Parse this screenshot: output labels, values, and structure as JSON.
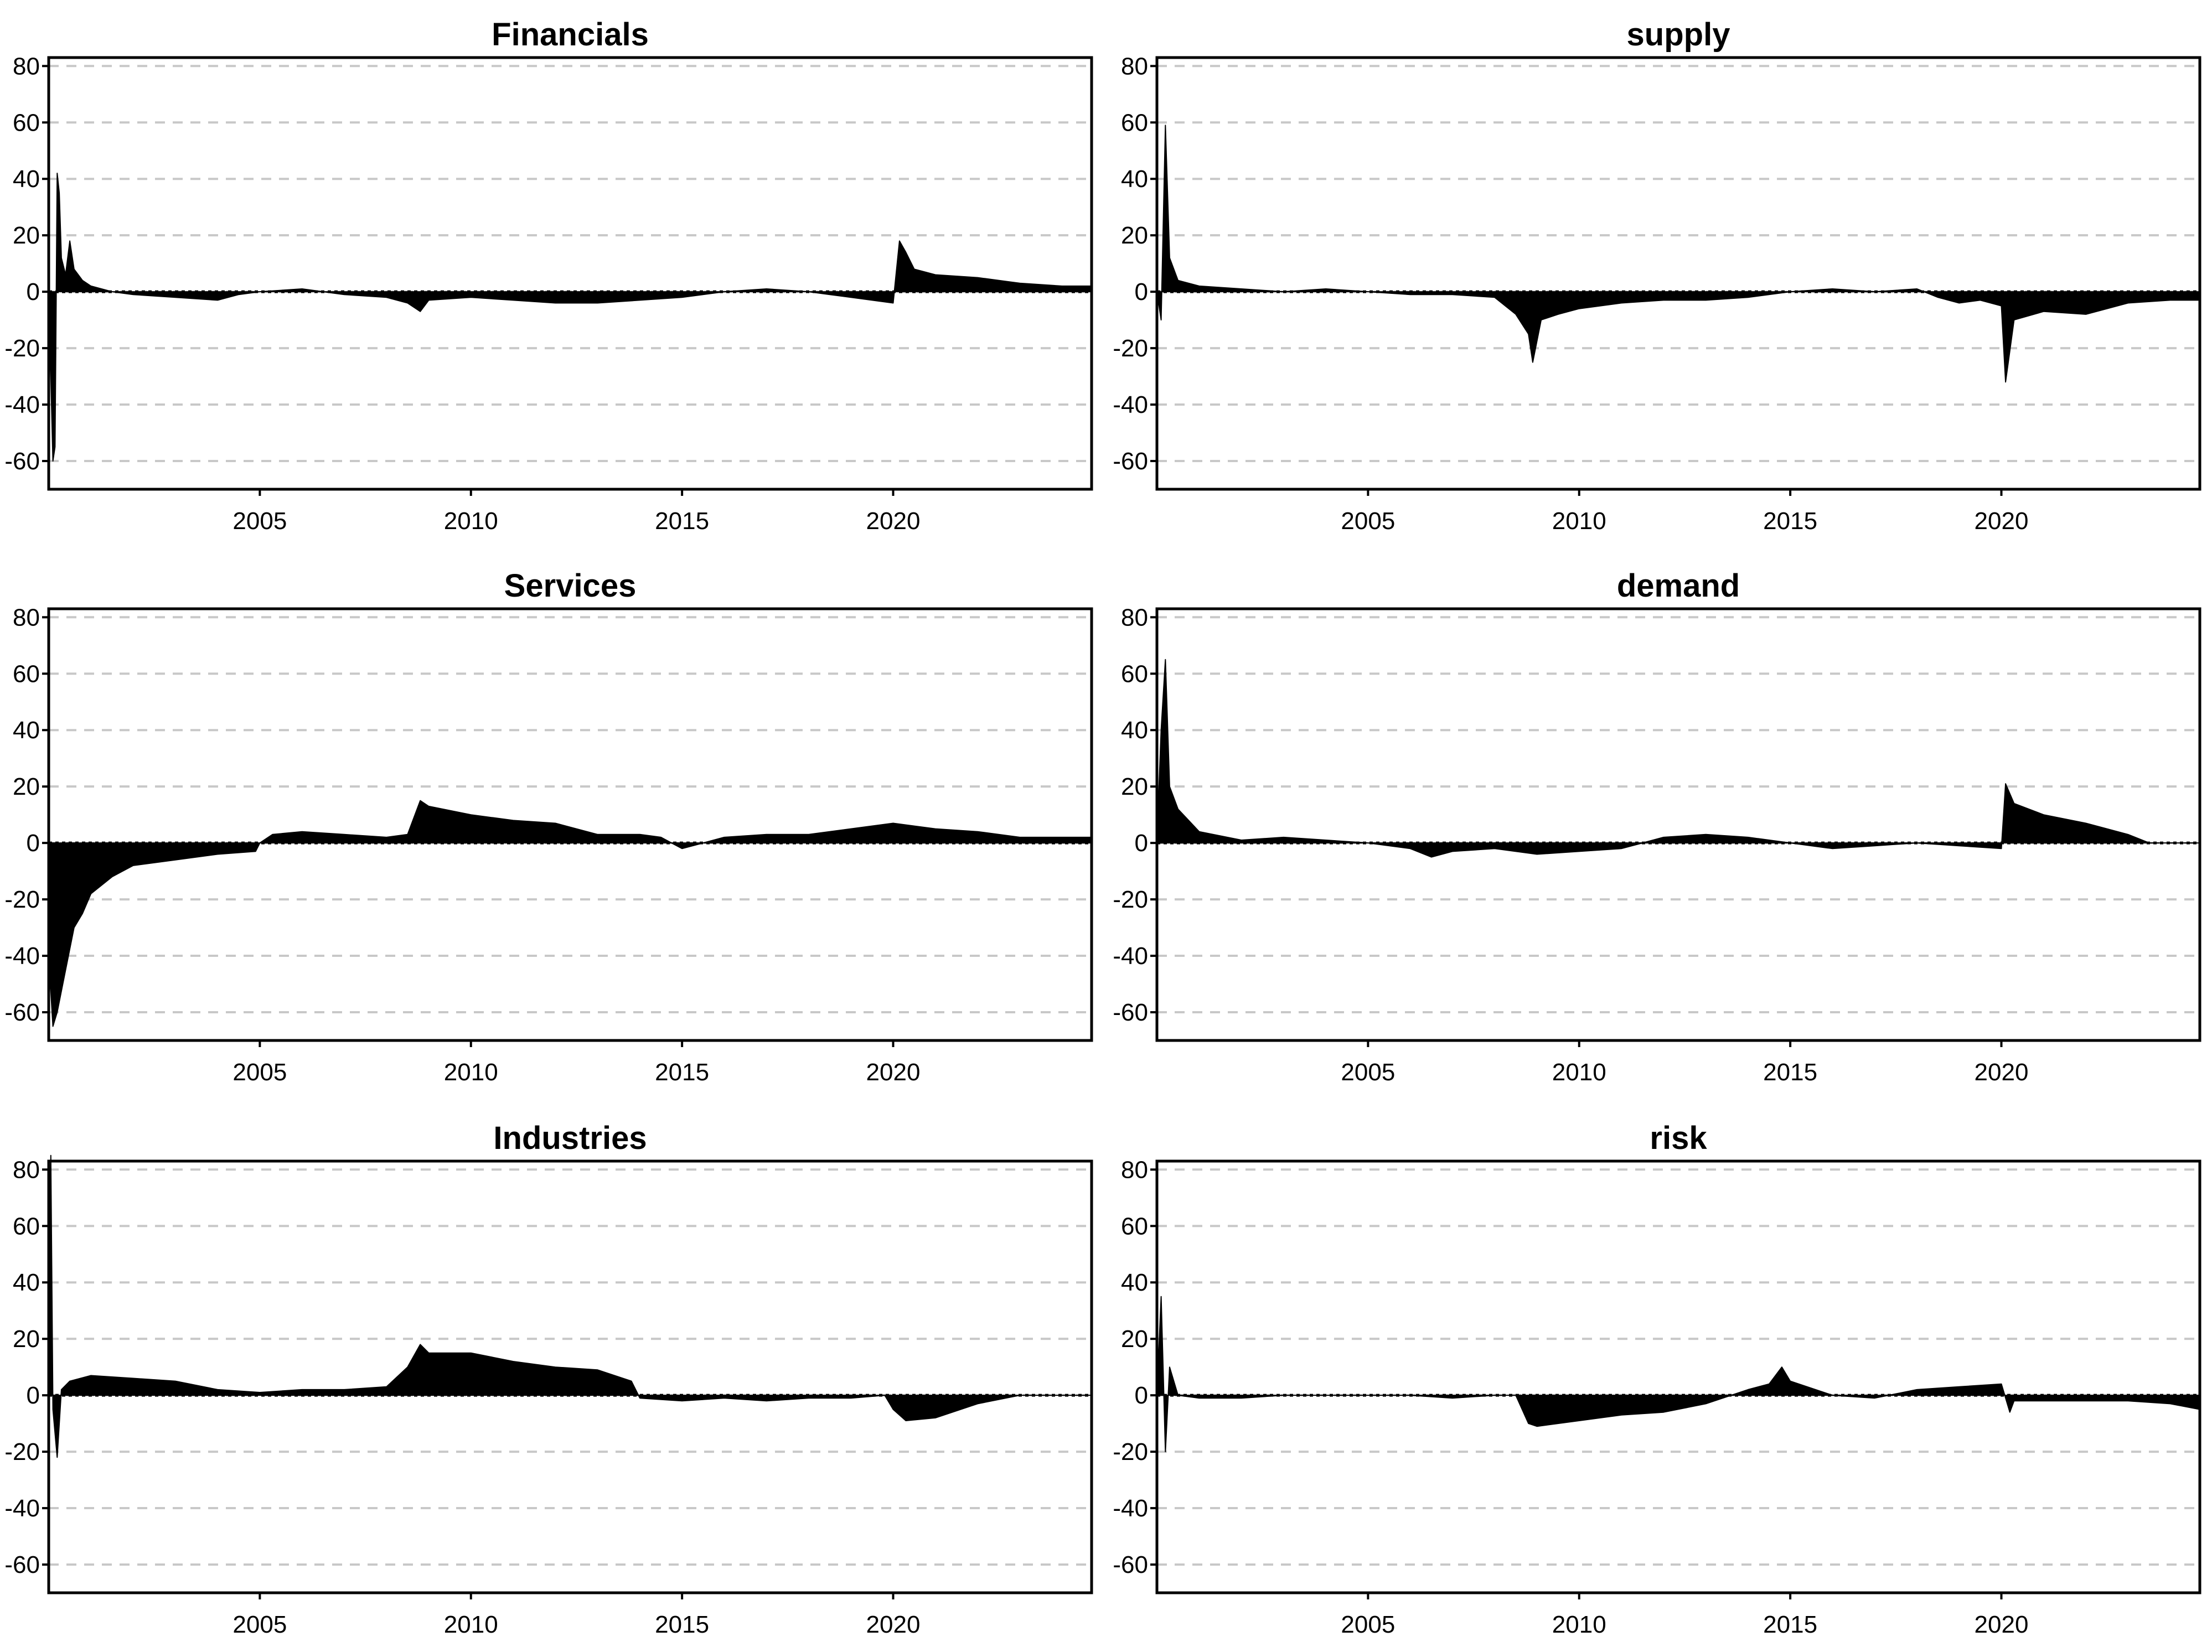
{
  "chart_data": [
    {
      "type": "area",
      "title": "Financials",
      "xlim": [
        2000,
        2024.7
      ],
      "ylim": [
        -70,
        83
      ],
      "yticks": [
        80,
        60,
        40,
        20,
        0,
        -20,
        -40,
        -60
      ],
      "xticks": [
        2005,
        2010,
        2015,
        2020
      ],
      "grid": true,
      "series": [
        {
          "values": [
            [
              2000.0,
              0
            ],
            [
              2000.1,
              -60
            ],
            [
              2000.15,
              -55
            ],
            [
              2000.2,
              42
            ],
            [
              2000.25,
              35
            ],
            [
              2000.3,
              12
            ],
            [
              2000.4,
              6
            ],
            [
              2000.5,
              18
            ],
            [
              2000.6,
              8
            ],
            [
              2000.8,
              4
            ],
            [
              2001.0,
              2
            ],
            [
              2001.5,
              0
            ],
            [
              2002.0,
              -1
            ],
            [
              2003.0,
              -2
            ],
            [
              2004.0,
              -3
            ],
            [
              2004.5,
              -1
            ],
            [
              2005.0,
              0
            ],
            [
              2006.0,
              1
            ],
            [
              2007.0,
              -1
            ],
            [
              2008.0,
              -2
            ],
            [
              2008.5,
              -4
            ],
            [
              2008.8,
              -7
            ],
            [
              2009.0,
              -3
            ],
            [
              2010.0,
              -2
            ],
            [
              2011.0,
              -3
            ],
            [
              2012.0,
              -4
            ],
            [
              2013.0,
              -4
            ],
            [
              2014.0,
              -3
            ],
            [
              2015.0,
              -2
            ],
            [
              2016.0,
              0
            ],
            [
              2017.0,
              1
            ],
            [
              2018.0,
              0
            ],
            [
              2018.5,
              -1
            ],
            [
              2019.0,
              -2
            ],
            [
              2019.5,
              -3
            ],
            [
              2020.0,
              -4
            ],
            [
              2020.15,
              18
            ],
            [
              2020.3,
              14
            ],
            [
              2020.5,
              8
            ],
            [
              2021.0,
              6
            ],
            [
              2022.0,
              5
            ],
            [
              2023.0,
              3
            ],
            [
              2024.0,
              2
            ],
            [
              2024.7,
              2
            ]
          ]
        }
      ]
    },
    {
      "type": "area",
      "title": "supply",
      "xlim": [
        2000,
        2024.7
      ],
      "ylim": [
        -70,
        83
      ],
      "yticks": [
        80,
        60,
        40,
        20,
        0,
        -20,
        -40,
        -60
      ],
      "xticks": [
        2005,
        2010,
        2015,
        2020
      ],
      "grid": true,
      "series": [
        {
          "values": [
            [
              2000.0,
              0
            ],
            [
              2000.1,
              -10
            ],
            [
              2000.2,
              59
            ],
            [
              2000.3,
              12
            ],
            [
              2000.5,
              4
            ],
            [
              2001.0,
              2
            ],
            [
              2002.0,
              1
            ],
            [
              2003.0,
              0
            ],
            [
              2004.0,
              1
            ],
            [
              2005.0,
              0
            ],
            [
              2006.0,
              -1
            ],
            [
              2007.0,
              -1
            ],
            [
              2008.0,
              -2
            ],
            [
              2008.5,
              -8
            ],
            [
              2008.8,
              -15
            ],
            [
              2008.9,
              -25
            ],
            [
              2009.1,
              -10
            ],
            [
              2009.5,
              -8
            ],
            [
              2010.0,
              -6
            ],
            [
              2011.0,
              -4
            ],
            [
              2012.0,
              -3
            ],
            [
              2013.0,
              -3
            ],
            [
              2014.0,
              -2
            ],
            [
              2015.0,
              0
            ],
            [
              2016.0,
              1
            ],
            [
              2017.0,
              0
            ],
            [
              2018.0,
              1
            ],
            [
              2018.5,
              -2
            ],
            [
              2019.0,
              -4
            ],
            [
              2019.5,
              -3
            ],
            [
              2020.0,
              -5
            ],
            [
              2020.1,
              -32
            ],
            [
              2020.3,
              -10
            ],
            [
              2021.0,
              -7
            ],
            [
              2022.0,
              -8
            ],
            [
              2023.0,
              -4
            ],
            [
              2024.0,
              -3
            ],
            [
              2024.7,
              -3
            ]
          ]
        }
      ]
    },
    {
      "type": "area",
      "title": "Services",
      "xlim": [
        2000,
        2024.7
      ],
      "ylim": [
        -70,
        83
      ],
      "yticks": [
        80,
        60,
        40,
        20,
        0,
        -20,
        -40,
        -60
      ],
      "xticks": [
        2005,
        2010,
        2015,
        2020
      ],
      "grid": true,
      "series": [
        {
          "values": [
            [
              2000.0,
              -40
            ],
            [
              2000.1,
              -65
            ],
            [
              2000.2,
              -60
            ],
            [
              2000.4,
              -45
            ],
            [
              2000.6,
              -30
            ],
            [
              2000.8,
              -25
            ],
            [
              2001.0,
              -18
            ],
            [
              2001.5,
              -12
            ],
            [
              2002.0,
              -8
            ],
            [
              2003.0,
              -6
            ],
            [
              2004.0,
              -4
            ],
            [
              2004.9,
              -3
            ],
            [
              2005.0,
              0
            ],
            [
              2005.3,
              3
            ],
            [
              2006.0,
              4
            ],
            [
              2007.0,
              3
            ],
            [
              2008.0,
              2
            ],
            [
              2008.5,
              3
            ],
            [
              2008.8,
              15
            ],
            [
              2009.0,
              13
            ],
            [
              2010.0,
              10
            ],
            [
              2011.0,
              8
            ],
            [
              2012.0,
              7
            ],
            [
              2013.0,
              3
            ],
            [
              2014.0,
              3
            ],
            [
              2014.5,
              2
            ],
            [
              2015.0,
              -2
            ],
            [
              2015.5,
              0
            ],
            [
              2016.0,
              2
            ],
            [
              2017.0,
              3
            ],
            [
              2018.0,
              3
            ],
            [
              2019.0,
              5
            ],
            [
              2020.0,
              7
            ],
            [
              2021.0,
              5
            ],
            [
              2022.0,
              4
            ],
            [
              2023.0,
              2
            ],
            [
              2024.0,
              2
            ],
            [
              2024.7,
              2
            ]
          ]
        }
      ]
    },
    {
      "type": "area",
      "title": "demand",
      "xlim": [
        2000,
        2024.7
      ],
      "ylim": [
        -70,
        83
      ],
      "yticks": [
        80,
        60,
        40,
        20,
        0,
        -20,
        -40,
        -60
      ],
      "xticks": [
        2005,
        2010,
        2015,
        2020
      ],
      "grid": true,
      "series": [
        {
          "values": [
            [
              2000.0,
              0
            ],
            [
              2000.1,
              40
            ],
            [
              2000.2,
              65
            ],
            [
              2000.3,
              20
            ],
            [
              2000.5,
              12
            ],
            [
              2001.0,
              4
            ],
            [
              2002.0,
              1
            ],
            [
              2003.0,
              2
            ],
            [
              2004.0,
              1
            ],
            [
              2005.0,
              0
            ],
            [
              2006.0,
              -2
            ],
            [
              2006.5,
              -5
            ],
            [
              2007.0,
              -3
            ],
            [
              2008.0,
              -2
            ],
            [
              2009.0,
              -4
            ],
            [
              2010.0,
              -3
            ],
            [
              2011.0,
              -2
            ],
            [
              2011.5,
              0
            ],
            [
              2012.0,
              2
            ],
            [
              2013.0,
              3
            ],
            [
              2014.0,
              2
            ],
            [
              2015.0,
              0
            ],
            [
              2016.0,
              -2
            ],
            [
              2017.0,
              -1
            ],
            [
              2018.0,
              0
            ],
            [
              2019.0,
              -1
            ],
            [
              2020.0,
              -2
            ],
            [
              2020.1,
              21
            ],
            [
              2020.3,
              14
            ],
            [
              2021.0,
              10
            ],
            [
              2022.0,
              7
            ],
            [
              2023.0,
              3
            ],
            [
              2023.5,
              0
            ],
            [
              2024.7,
              0
            ]
          ]
        }
      ]
    },
    {
      "type": "area",
      "title": "Industries",
      "xlim": [
        2000,
        2024.7
      ],
      "ylim": [
        -70,
        83
      ],
      "yticks": [
        80,
        60,
        40,
        20,
        0,
        -20,
        -40,
        -60
      ],
      "xticks": [
        2005,
        2010,
        2015,
        2020
      ],
      "grid": true,
      "series": [
        {
          "values": [
            [
              2000.0,
              0
            ],
            [
              2000.05,
              85
            ],
            [
              2000.1,
              -5
            ],
            [
              2000.2,
              -22
            ],
            [
              2000.3,
              2
            ],
            [
              2000.5,
              5
            ],
            [
              2001.0,
              7
            ],
            [
              2002.0,
              6
            ],
            [
              2003.0,
              5
            ],
            [
              2004.0,
              2
            ],
            [
              2005.0,
              1
            ],
            [
              2006.0,
              2
            ],
            [
              2007.0,
              2
            ],
            [
              2008.0,
              3
            ],
            [
              2008.5,
              10
            ],
            [
              2008.8,
              18
            ],
            [
              2009.0,
              15
            ],
            [
              2010.0,
              15
            ],
            [
              2011.0,
              12
            ],
            [
              2012.0,
              10
            ],
            [
              2013.0,
              9
            ],
            [
              2013.8,
              5
            ],
            [
              2014.0,
              -1
            ],
            [
              2015.0,
              -2
            ],
            [
              2016.0,
              -1
            ],
            [
              2017.0,
              -2
            ],
            [
              2018.0,
              -1
            ],
            [
              2019.0,
              -1
            ],
            [
              2019.8,
              0
            ],
            [
              2020.0,
              -5
            ],
            [
              2020.3,
              -9
            ],
            [
              2021.0,
              -8
            ],
            [
              2022.0,
              -3
            ],
            [
              2023.0,
              0
            ],
            [
              2024.7,
              0
            ]
          ]
        }
      ]
    },
    {
      "type": "area",
      "title": "risk",
      "xlim": [
        2000,
        2024.7
      ],
      "ylim": [
        -70,
        83
      ],
      "yticks": [
        80,
        60,
        40,
        20,
        0,
        -20,
        -40,
        -60
      ],
      "xticks": [
        2005,
        2010,
        2015,
        2020
      ],
      "grid": true,
      "series": [
        {
          "values": [
            [
              2000.0,
              0
            ],
            [
              2000.1,
              35
            ],
            [
              2000.2,
              -20
            ],
            [
              2000.3,
              10
            ],
            [
              2000.5,
              0
            ],
            [
              2001.0,
              -1
            ],
            [
              2002.0,
              -1
            ],
            [
              2003.0,
              0
            ],
            [
              2004.0,
              0
            ],
            [
              2005.0,
              0
            ],
            [
              2006.0,
              0
            ],
            [
              2007.0,
              -1
            ],
            [
              2008.0,
              0
            ],
            [
              2008.5,
              0
            ],
            [
              2008.8,
              -10
            ],
            [
              2009.0,
              -11
            ],
            [
              2010.0,
              -9
            ],
            [
              2011.0,
              -7
            ],
            [
              2012.0,
              -6
            ],
            [
              2013.0,
              -3
            ],
            [
              2014.0,
              2
            ],
            [
              2014.5,
              4
            ],
            [
              2014.8,
              10
            ],
            [
              2015.0,
              5
            ],
            [
              2016.0,
              0
            ],
            [
              2017.0,
              -1
            ],
            [
              2018.0,
              2
            ],
            [
              2019.0,
              3
            ],
            [
              2020.0,
              4
            ],
            [
              2020.2,
              -6
            ],
            [
              2020.3,
              -2
            ],
            [
              2021.0,
              -2
            ],
            [
              2022.0,
              -2
            ],
            [
              2023.0,
              -2
            ],
            [
              2024.0,
              -3
            ],
            [
              2024.7,
              -5
            ]
          ]
        }
      ]
    }
  ]
}
